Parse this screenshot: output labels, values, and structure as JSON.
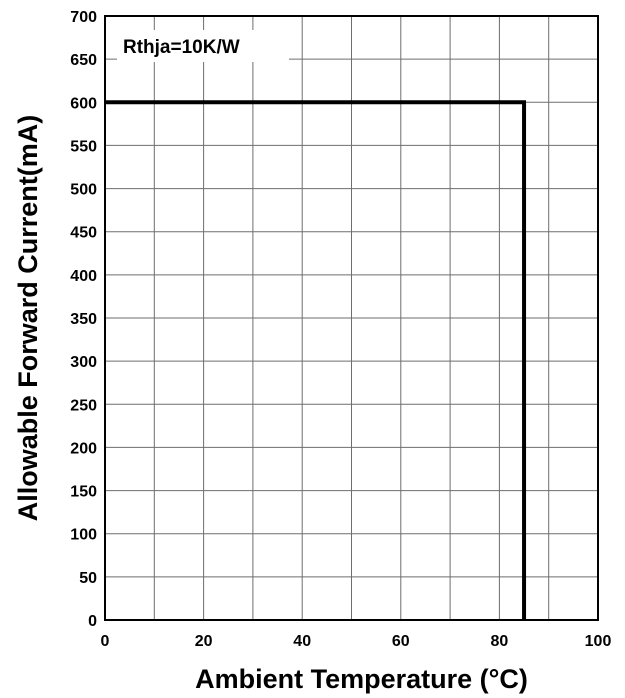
{
  "chart_data": {
    "type": "line",
    "xlabel": "Ambient Temperature (°C)",
    "ylabel": "Allowable Forward Current(mA)",
    "xlim": [
      0,
      100
    ],
    "ylim": [
      0,
      700
    ],
    "x_ticks": [
      0,
      10,
      20,
      30,
      40,
      50,
      60,
      70,
      80,
      90,
      100
    ],
    "x_tick_labels": [
      "0",
      "",
      "20",
      "",
      "40",
      "",
      "60",
      "",
      "80",
      "",
      "100"
    ],
    "y_ticks": [
      0,
      50,
      100,
      150,
      200,
      250,
      300,
      350,
      400,
      450,
      500,
      550,
      600,
      650,
      700
    ],
    "y_tick_labels": [
      "0",
      "50",
      "100",
      "150",
      "200",
      "250",
      "300",
      "350",
      "400",
      "450",
      "500",
      "550",
      "600",
      "650",
      "700"
    ],
    "grid": true,
    "annotation": "Rthja=10K/W",
    "series": [
      {
        "color": "#000000",
        "x": [
          0,
          85,
          85
        ],
        "y": [
          600,
          600,
          0
        ]
      }
    ]
  }
}
